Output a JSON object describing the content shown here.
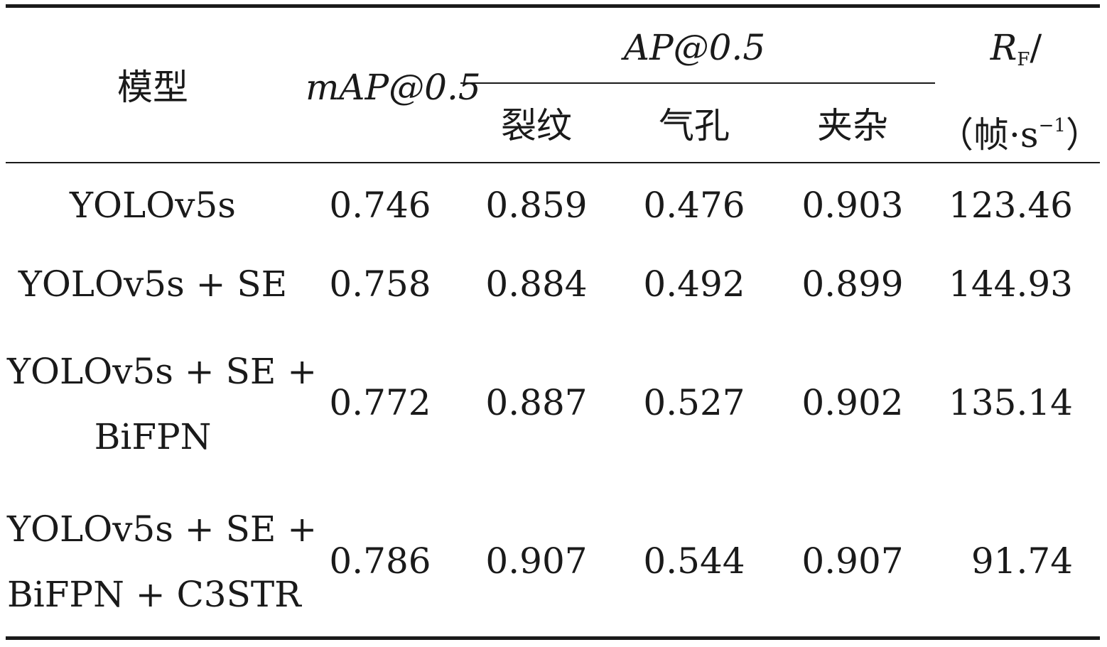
{
  "table": {
    "headers": {
      "model": "模型",
      "map": "mAP@0.5",
      "ap_group": "AP@0.5",
      "ap_crack": "裂纹",
      "ap_pore": "气孔",
      "ap_inclusion": "夹杂",
      "rf_main": "R",
      "rf_sub": "F",
      "rf_slash": "/",
      "rf_unit_open": "（帧·s",
      "rf_unit_sup": "−1",
      "rf_unit_close": "）"
    },
    "rows": [
      {
        "model_lines": [
          "YOLOv5s"
        ],
        "map": "0.746",
        "crack": "0.859",
        "pore": "0.476",
        "inclusion": "0.903",
        "rf": "123.46"
      },
      {
        "model_lines": [
          "YOLOv5s + SE"
        ],
        "map": "0.758",
        "crack": "0.884",
        "pore": "0.492",
        "inclusion": "0.899",
        "rf": "144.93"
      },
      {
        "model_lines": [
          "YOLOv5s + SE +",
          "BiFPN"
        ],
        "map": "0.772",
        "crack": "0.887",
        "pore": "0.527",
        "inclusion": "0.902",
        "rf": "135.14"
      },
      {
        "model_lines": [
          "YOLOv5s + SE +",
          "BiFPN + C3STR"
        ],
        "map": "0.786",
        "crack": "0.907",
        "pore": "0.544",
        "inclusion": "0.907",
        "rf": "91.74"
      }
    ]
  }
}
